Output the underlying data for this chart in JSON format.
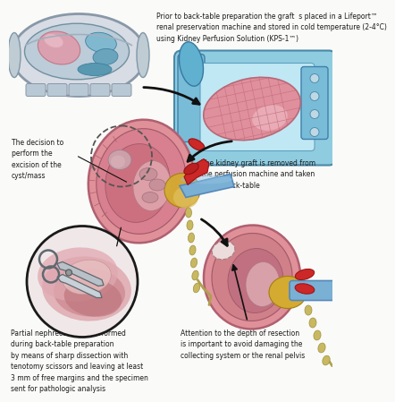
{
  "bg_color": "#fafaf8",
  "annotation_top": "Prior to back-table preparation the graft  s placed in a Lifeport™\nrenal preservation machine and stored in cold temperature (2-4°C)\nusing Kidney Perfusion Solution (KPS-1™)",
  "annotation_left": "The decision to\nperform the\nexcision of the\ncyst/mass",
  "annotation_right": "The kidney graft is removed from\nthe perfusion machine and taken\nto the back-table",
  "annotation_bottom_left": "Partial nephrectomy is performed\nduring back-table preparation\nby means of sharp dissection with\ntenotomy scissors and leaving at least\n3 mm of free margins and the specimen\nsent for pathologic analysis",
  "annotation_bottom_right": "Attention to the depth of resection\nis important to avoid damaging the\ncollecting system or the renal pelvis",
  "machine_body": "#d8dfe8",
  "machine_rim": "#9aabb8",
  "machine_inner": "#b8cdd8",
  "machine_tray_outer": "#88c4d8",
  "machine_tray_inner": "#a8dae8",
  "kidney_outer": "#e0909c",
  "kidney_mid": "#d87888",
  "kidney_inner": "#c86878",
  "kidney_cortex": "#e8a0ac",
  "kidney_light": "#f0c8cc",
  "artery_red": "#cc2828",
  "vein_blue": "#5588bb",
  "vein_blue2": "#7ab0d4",
  "fat_yellow": "#d4aa30",
  "fat_yellow2": "#e0c060",
  "ureter_tan": "#c8b870",
  "text_color": "#1a1a1a",
  "arrow_color": "#111111",
  "scissors_color": "#a0a8b0",
  "scissors_edge": "#606870"
}
